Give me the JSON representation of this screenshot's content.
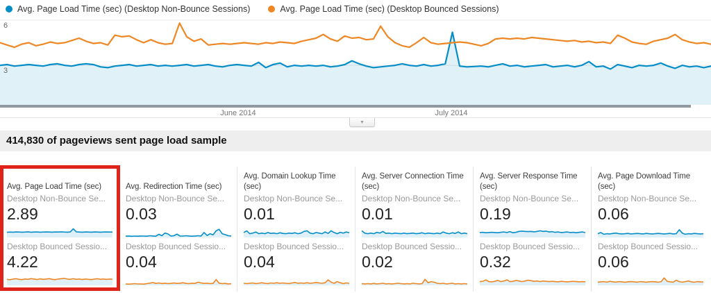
{
  "legend": [
    {
      "label": "Avg. Page Load Time (sec) (Desktop Non-Bounce Sessions)",
      "color": "#058dc7"
    },
    {
      "label": "Avg. Page Load Time (sec) (Desktop Bounced Sessions)",
      "color": "#ee8723"
    }
  ],
  "banner": {
    "text": "414,830 of pageviews sent page load sample"
  },
  "controls": {
    "collapse_glyph": "▼"
  },
  "colors": {
    "blue": "#058dc7",
    "orange": "#ee8723",
    "blue_fill": "rgba(5,141,199,0.12)",
    "spark_fill": "rgba(5,141,199,0.13)",
    "gridline": "#e8e8e8",
    "axis_bar": "#8f999e",
    "tick_label": "#666666",
    "month_label": "#757575",
    "highlight_red": "#e0231a"
  },
  "chart_data": {
    "type": "line",
    "title": "",
    "xlabel": "",
    "ylabel": "",
    "ylim": [
      0,
      6
    ],
    "y_ticks": [
      6,
      3
    ],
    "grid": true,
    "legend_position": "top-left",
    "x_month_labels": [
      {
        "label": "June 2014",
        "frac": 0.335
      },
      {
        "label": "July 2014",
        "frac": 0.635
      }
    ],
    "series": [
      {
        "name": "Avg. Page Load Time (sec) (Desktop Non-Bounce Sessions)",
        "color": "#058dc7",
        "fill": true,
        "values": [
          3.0,
          3.05,
          2.95,
          3.0,
          3.05,
          3.0,
          2.95,
          3.05,
          3.1,
          3.0,
          2.95,
          3.05,
          3.1,
          3.05,
          2.9,
          2.85,
          2.95,
          3.0,
          3.05,
          2.95,
          3.0,
          3.05,
          2.95,
          3.0,
          2.95,
          3.0,
          3.05,
          2.95,
          3.0,
          3.05,
          2.95,
          2.9,
          3.0,
          3.05,
          3.0,
          2.95,
          3.2,
          2.85,
          3.05,
          3.15,
          2.9,
          3.0,
          2.95,
          3.0,
          2.95,
          3.0,
          2.9,
          2.95,
          3.05,
          3.3,
          3.1,
          2.95,
          2.85,
          2.9,
          2.95,
          3.0,
          3.1,
          3.0,
          2.95,
          3.05,
          2.95,
          3.0,
          3.1,
          5.2,
          2.95,
          2.9,
          2.92,
          2.95,
          2.9,
          3.0,
          3.1,
          2.95,
          3.0,
          2.9,
          2.95,
          3.0,
          3.05,
          2.9,
          2.95,
          3.0,
          2.9,
          3.0,
          3.25,
          2.9,
          2.95,
          2.75,
          3.05,
          2.95,
          2.85,
          3.0,
          2.95,
          3.0,
          3.15,
          2.95,
          2.8,
          3.0,
          2.9,
          2.95,
          2.85,
          2.95
        ]
      },
      {
        "name": "Avg. Page Load Time (sec) (Desktop Bounced Sessions)",
        "color": "#ee8723",
        "fill": false,
        "values": [
          4.5,
          4.35,
          4.2,
          4.4,
          4.5,
          4.3,
          4.4,
          4.55,
          4.45,
          4.5,
          4.65,
          4.8,
          4.6,
          4.45,
          4.5,
          4.35,
          5.0,
          4.9,
          4.95,
          4.7,
          4.5,
          4.7,
          4.5,
          4.4,
          4.45,
          5.8,
          4.9,
          4.6,
          4.75,
          4.35,
          4.4,
          4.45,
          4.4,
          4.45,
          4.5,
          4.45,
          4.4,
          4.5,
          4.45,
          4.55,
          4.5,
          4.45,
          4.6,
          4.7,
          4.8,
          5.05,
          4.75,
          4.6,
          4.95,
          4.8,
          4.85,
          4.7,
          4.75,
          5.6,
          4.9,
          4.5,
          4.3,
          4.2,
          4.5,
          4.85,
          4.5,
          4.4,
          4.45,
          4.5,
          4.55,
          4.5,
          4.4,
          4.3,
          4.45,
          4.75,
          4.8,
          4.75,
          4.8,
          4.75,
          4.85,
          4.8,
          4.75,
          4.7,
          4.65,
          4.6,
          4.65,
          4.55,
          4.6,
          4.5,
          4.55,
          4.45,
          5.0,
          4.8,
          4.55,
          4.45,
          4.4,
          4.6,
          4.7,
          4.8,
          5.05,
          4.7,
          4.55,
          4.45,
          4.5,
          4.4
        ]
      }
    ]
  },
  "cards": [
    {
      "title": "Avg. Page Load Time (sec)",
      "highlighted": true,
      "rows": [
        {
          "label": "Desktop Non-Bounce Se...",
          "value": "2.89",
          "color": "#058dc7",
          "spark": [
            0.42,
            0.44,
            0.43,
            0.45,
            0.44,
            0.43,
            0.44,
            0.46,
            0.43,
            0.44,
            0.45,
            0.43,
            0.44,
            0.45,
            0.44,
            0.43,
            0.45,
            0.44,
            0.46,
            0.44,
            0.43,
            0.45,
            0.72,
            0.46,
            0.44,
            0.43,
            0.45,
            0.44,
            0.43,
            0.45,
            0.44,
            0.43,
            0.44,
            0.45,
            0.44,
            0.44
          ]
        },
        {
          "label": "Desktop Bounced Sessio...",
          "value": "4.22",
          "color": "#ee8723",
          "spark": [
            0.5,
            0.46,
            0.52,
            0.55,
            0.5,
            0.47,
            0.53,
            0.5,
            0.56,
            0.52,
            0.48,
            0.54,
            0.5,
            0.52,
            0.56,
            0.5,
            0.47,
            0.52,
            0.55,
            0.58,
            0.52,
            0.5,
            0.55,
            0.5,
            0.53,
            0.48,
            0.52,
            0.5,
            0.47,
            0.52,
            0.55,
            0.5,
            0.53,
            0.49,
            0.52,
            0.5
          ]
        }
      ]
    },
    {
      "title": "Avg. Redirection Time (sec)",
      "highlighted": false,
      "rows": [
        {
          "label": "Desktop Non-Bounce Se...",
          "value": "0.03",
          "color": "#058dc7",
          "spark": [
            0.08,
            0.1,
            0.07,
            0.09,
            0.08,
            0.1,
            0.09,
            0.08,
            0.12,
            0.1,
            0.08,
            0.25,
            0.12,
            0.35,
            0.28,
            0.1,
            0.12,
            0.26,
            0.1,
            0.09,
            0.12,
            0.1,
            0.08,
            0.1,
            0.12,
            0.1,
            0.4,
            0.14,
            0.3,
            0.2,
            0.55,
            0.68,
            0.3,
            0.22,
            0.12,
            0.1
          ]
        },
        {
          "label": "Desktop Bounced Sessio...",
          "value": "0.04",
          "color": "#ee8723",
          "spark": [
            0.1,
            0.08,
            0.1,
            0.12,
            0.09,
            0.1,
            0.08,
            0.12,
            0.16,
            0.22,
            0.14,
            0.18,
            0.13,
            0.16,
            0.12,
            0.14,
            0.18,
            0.14,
            0.16,
            0.2,
            0.14,
            0.12,
            0.16,
            0.14,
            0.25,
            0.18,
            0.14,
            0.16,
            0.12,
            0.14,
            0.48,
            0.16,
            0.12,
            0.14,
            0.1,
            0.12
          ]
        }
      ]
    },
    {
      "title": "Avg. Domain Lookup Time (sec)",
      "highlighted": false,
      "rows": [
        {
          "label": "Desktop Non-Bounce Se...",
          "value": "0.01",
          "color": "#058dc7",
          "spark": [
            0.4,
            0.55,
            0.3,
            0.35,
            0.45,
            0.3,
            0.35,
            0.3,
            0.4,
            0.32,
            0.35,
            0.3,
            0.38,
            0.32,
            0.3,
            0.35,
            0.32,
            0.38,
            0.3,
            0.35,
            0.5,
            0.55,
            0.35,
            0.3,
            0.4,
            0.35,
            0.3,
            0.45,
            0.32,
            0.55,
            0.4,
            0.3,
            0.42,
            0.35,
            0.45,
            0.38
          ]
        },
        {
          "label": "Desktop Bounced Sessio...",
          "value": "0.04",
          "color": "#ee8723",
          "spark": [
            0.15,
            0.12,
            0.15,
            0.18,
            0.12,
            0.15,
            0.2,
            0.15,
            0.12,
            0.18,
            0.15,
            0.2,
            0.15,
            0.18,
            0.15,
            0.12,
            0.18,
            0.22,
            0.15,
            0.18,
            0.15,
            0.2,
            0.15,
            0.18,
            0.22,
            0.18,
            0.15,
            0.2,
            0.45,
            0.25,
            0.15,
            0.3,
            0.2,
            0.12,
            0.18,
            0.15
          ]
        }
      ]
    },
    {
      "title": "Avg. Server Connection Time (sec)",
      "highlighted": false,
      "rows": [
        {
          "label": "Desktop Non-Bounce Se...",
          "value": "0.01",
          "color": "#058dc7",
          "spark": [
            0.55,
            0.35,
            0.3,
            0.35,
            0.3,
            0.42,
            0.35,
            0.5,
            0.32,
            0.35,
            0.3,
            0.35,
            0.32,
            0.3,
            0.35,
            0.3,
            0.32,
            0.35,
            0.3,
            0.32,
            0.38,
            0.3,
            0.35,
            0.32,
            0.3,
            0.35,
            0.3,
            0.45,
            0.35,
            0.3,
            0.38,
            0.32,
            0.45,
            0.3,
            0.35,
            0.3
          ]
        },
        {
          "label": "Desktop Bounced Sessio...",
          "value": "0.02",
          "color": "#ee8723",
          "spark": [
            0.12,
            0.1,
            0.12,
            0.1,
            0.14,
            0.1,
            0.12,
            0.15,
            0.1,
            0.12,
            0.1,
            0.12,
            0.15,
            0.12,
            0.1,
            0.12,
            0.1,
            0.15,
            0.12,
            0.1,
            0.12,
            0.5,
            0.2,
            0.3,
            0.25,
            0.15,
            0.12,
            0.15,
            0.1,
            0.12,
            0.15,
            0.1,
            0.12,
            0.1,
            0.12,
            0.1
          ]
        }
      ]
    },
    {
      "title": "Avg. Server Response Time (sec)",
      "highlighted": false,
      "rows": [
        {
          "label": "Desktop Non-Bounce Se...",
          "value": "0.19",
          "color": "#058dc7",
          "spark": [
            0.4,
            0.42,
            0.38,
            0.4,
            0.42,
            0.4,
            0.38,
            0.42,
            0.45,
            0.4,
            0.48,
            0.38,
            0.42,
            0.5,
            0.52,
            0.5,
            0.48,
            0.5,
            0.46,
            0.5,
            0.55,
            0.5,
            0.52,
            0.45,
            0.48,
            0.42,
            0.45,
            0.4,
            0.42,
            0.45,
            0.4,
            0.42,
            0.38,
            0.42,
            0.45,
            0.4
          ]
        },
        {
          "label": "Desktop Bounced Sessio...",
          "value": "0.32",
          "color": "#ee8723",
          "spark": [
            0.3,
            0.32,
            0.45,
            0.3,
            0.28,
            0.32,
            0.4,
            0.3,
            0.35,
            0.45,
            0.3,
            0.32,
            0.4,
            0.35,
            0.3,
            0.35,
            0.42,
            0.38,
            0.32,
            0.35,
            0.3,
            0.35,
            0.32,
            0.3,
            0.32,
            0.3,
            0.28,
            0.32,
            0.3,
            0.28,
            0.3,
            0.32,
            0.3,
            0.28,
            0.3,
            0.28
          ]
        }
      ]
    },
    {
      "title": "Avg. Page Download Time (sec)",
      "highlighted": false,
      "rows": [
        {
          "label": "Desktop Non-Bounce Se...",
          "value": "0.06",
          "color": "#058dc7",
          "spark": [
            0.3,
            0.4,
            0.25,
            0.3,
            0.28,
            0.32,
            0.35,
            0.3,
            0.28,
            0.3,
            0.32,
            0.28,
            0.3,
            0.32,
            0.3,
            0.28,
            0.32,
            0.3,
            0.28,
            0.3,
            0.32,
            0.3,
            0.28,
            0.3,
            0.32,
            0.28,
            0.3,
            0.65,
            0.35,
            0.25,
            0.3,
            0.28,
            0.32,
            0.3,
            0.28,
            0.3
          ]
        },
        {
          "label": "Desktop Bounced Sessio...",
          "value": "0.06",
          "color": "#ee8723",
          "spark": [
            0.25,
            0.28,
            0.3,
            0.25,
            0.32,
            0.28,
            0.25,
            0.3,
            0.28,
            0.25,
            0.28,
            0.3,
            0.28,
            0.25,
            0.3,
            0.28,
            0.25,
            0.28,
            0.3,
            0.28,
            0.25,
            0.3,
            0.62,
            0.32,
            0.28,
            0.25,
            0.42,
            0.3,
            0.25,
            0.3,
            0.35,
            0.28,
            0.25,
            0.3,
            0.28,
            0.26
          ]
        }
      ]
    }
  ]
}
